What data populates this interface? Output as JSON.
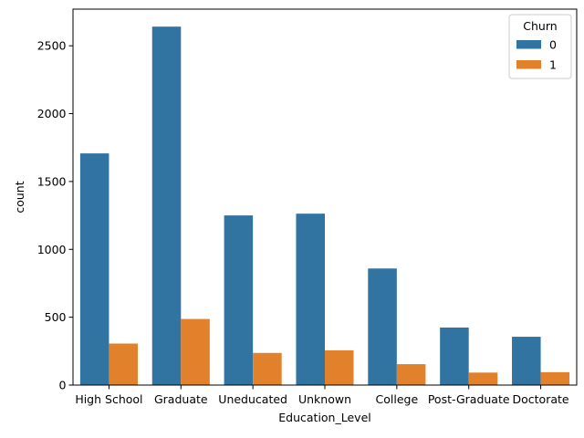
{
  "chart_data": {
    "type": "bar",
    "title": "",
    "xlabel": "Education_Level",
    "ylabel": "count",
    "categories": [
      "High School",
      "Graduate",
      "Uneducated",
      "Unknown",
      "College",
      "Post-Graduate",
      "Doctorate"
    ],
    "series": [
      {
        "name": "0",
        "color": "#3274a1",
        "values": [
          1707,
          2641,
          1250,
          1263,
          859,
          424,
          356
        ]
      },
      {
        "name": "1",
        "color": "#e1812c",
        "values": [
          306,
          487,
          237,
          256,
          154,
          92,
          95
        ]
      }
    ],
    "ylim": [
      0,
      2770
    ],
    "yticks": [
      0,
      500,
      1000,
      1500,
      2000,
      2500
    ],
    "legend": {
      "title": "Churn",
      "placement": "top-right"
    },
    "grid": false
  }
}
